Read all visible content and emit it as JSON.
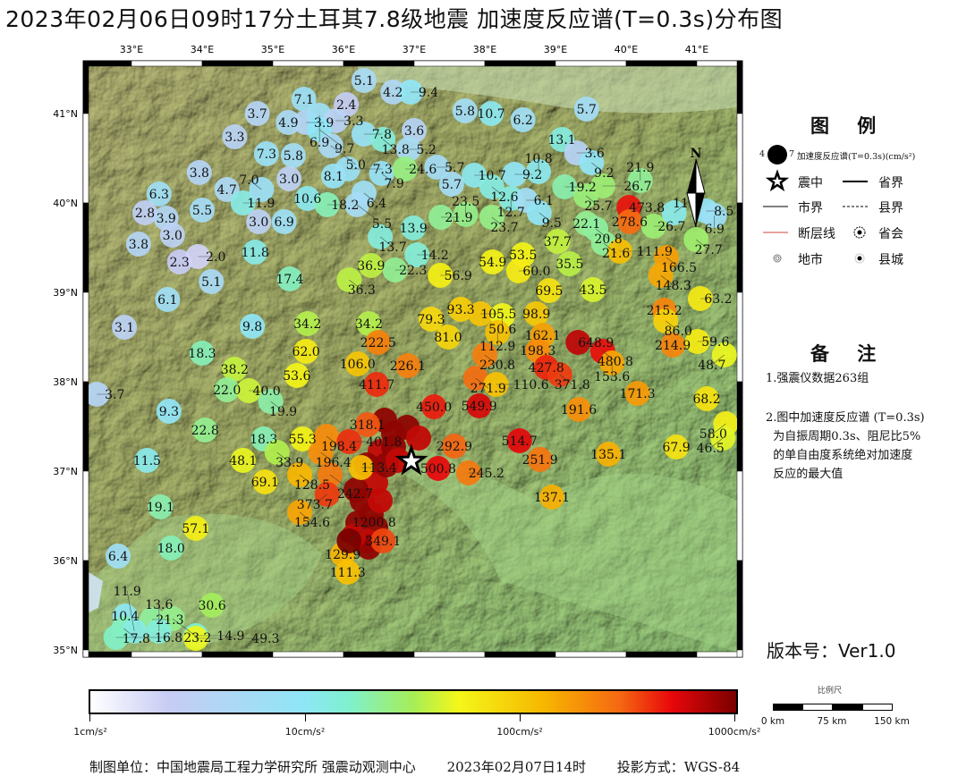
{
  "title": "2023年02月06日09时17分土耳其7.8级地震   加速度反应谱(T=0.3s)分布图",
  "map": {
    "lon_ticks": [
      "33°E",
      "34°E",
      "35°E",
      "36°E",
      "37°E",
      "38°E",
      "39°E",
      "40°E",
      "41°E"
    ],
    "lat_ticks": [
      "41°N",
      "40°N",
      "39°N",
      "38°N",
      "37°N",
      "36°N",
      "35°N"
    ],
    "north_label": "N",
    "epicenter": {
      "lon": 36.96,
      "lat": 37.11
    },
    "color_scale": {
      "min": 1,
      "max": 1000,
      "log": true,
      "stops": [
        "#ffffff",
        "#c8ccf4",
        "#8fe6f6",
        "#7ff0cf",
        "#a6ee57",
        "#f4f719",
        "#f7b800",
        "#f56812",
        "#e8070a",
        "#7a0000"
      ]
    },
    "stations": [
      [
        36.29,
        41.37,
        "5.1"
      ],
      [
        35.44,
        41.16,
        "7.1"
      ],
      [
        36.04,
        41.1,
        "2.4"
      ],
      [
        36.7,
        41.24,
        "4.2"
      ],
      [
        36.95,
        41.24,
        "9.4"
      ],
      [
        34.78,
        41.0,
        "3.7"
      ],
      [
        35.22,
        40.9,
        "4.9"
      ],
      [
        35.47,
        40.9,
        "3.9"
      ],
      [
        35.66,
        40.98,
        "6.9"
      ],
      [
        35.89,
        40.92,
        "3.3"
      ],
      [
        35.66,
        40.82,
        "9.7"
      ],
      [
        37.0,
        40.81,
        "3.6"
      ],
      [
        34.46,
        40.74,
        "3.3"
      ],
      [
        36.29,
        40.77,
        "7.8"
      ],
      [
        36.56,
        40.71,
        "13.8"
      ],
      [
        36.92,
        40.6,
        "5.2"
      ],
      [
        35.82,
        40.64,
        "5.0"
      ],
      [
        34.91,
        40.55,
        "7.3"
      ],
      [
        35.29,
        40.53,
        "5.8"
      ],
      [
        33.96,
        40.34,
        "3.8"
      ],
      [
        35.23,
        40.27,
        "3.0"
      ],
      [
        35.86,
        40.3,
        "8.1"
      ],
      [
        36.06,
        40.38,
        "7.3"
      ],
      [
        36.54,
        40.33,
        "7.9"
      ],
      [
        36.87,
        40.38,
        "24.6"
      ],
      [
        37.32,
        40.4,
        "5.7"
      ],
      [
        33.39,
        40.1,
        "6.3"
      ],
      [
        34.35,
        40.15,
        "4.7"
      ],
      [
        34.58,
        40.0,
        "11.9"
      ],
      [
        34.84,
        40.15,
        "7.0"
      ],
      [
        35.49,
        40.05,
        "10.6"
      ],
      [
        35.77,
        39.98,
        "18.2"
      ],
      [
        36.29,
        40.11,
        "6.4"
      ],
      [
        36.19,
        39.98,
        "5.5"
      ],
      [
        33.19,
        39.89,
        "2.8"
      ],
      [
        33.49,
        39.83,
        "3.9"
      ],
      [
        34.0,
        39.92,
        "5.5"
      ],
      [
        34.8,
        39.79,
        "3.0"
      ],
      [
        35.16,
        39.79,
        "6.9"
      ],
      [
        33.58,
        39.64,
        "3.0"
      ],
      [
        33.1,
        39.54,
        "3.8"
      ],
      [
        33.68,
        39.34,
        "2.3"
      ],
      [
        33.94,
        39.4,
        "2.0"
      ],
      [
        34.75,
        39.45,
        "11.8"
      ],
      [
        36.52,
        39.62,
        "13.7"
      ],
      [
        36.99,
        39.72,
        "13.9"
      ],
      [
        37.04,
        39.42,
        "14.2"
      ],
      [
        34.13,
        39.12,
        "5.1"
      ],
      [
        35.24,
        39.15,
        "17.4"
      ],
      [
        36.39,
        39.3,
        "36.9"
      ],
      [
        36.73,
        39.25,
        "22.3"
      ],
      [
        36.08,
        39.14,
        "36.3"
      ],
      [
        33.51,
        38.92,
        "6.1"
      ],
      [
        37.72,
        41.03,
        "5.8"
      ],
      [
        38.09,
        41.0,
        "10.7"
      ],
      [
        38.54,
        40.93,
        "6.2"
      ],
      [
        39.44,
        41.05,
        "5.7"
      ],
      [
        39.09,
        40.71,
        "13.1"
      ],
      [
        39.3,
        40.56,
        "3.6"
      ],
      [
        39.51,
        40.45,
        "9.2"
      ],
      [
        37.53,
        40.21,
        "5.7"
      ],
      [
        37.85,
        40.31,
        "10.7"
      ],
      [
        38.42,
        40.32,
        "9.2"
      ],
      [
        38.76,
        40.35,
        "10.8"
      ],
      [
        38.1,
        40.18,
        "12.6"
      ],
      [
        38.37,
        40.05,
        "12.7"
      ],
      [
        38.58,
        40.03,
        "6.1"
      ],
      [
        38.77,
        39.89,
        "9.5"
      ],
      [
        39.13,
        40.18,
        "19.2"
      ],
      [
        39.43,
        40.08,
        "25.7"
      ],
      [
        39.67,
        40.19,
        "26.7"
      ],
      [
        40.2,
        40.25,
        "21.9"
      ],
      [
        40.04,
        39.95,
        "473.8"
      ],
      [
        40.05,
        39.79,
        "278.6"
      ],
      [
        40.39,
        39.74,
        "26.7"
      ],
      [
        40.68,
        39.89,
        "11.4"
      ],
      [
        41.13,
        39.91,
        "8.5"
      ],
      [
        41.25,
        39.86,
        "6.9"
      ],
      [
        40.99,
        39.59,
        "27.7"
      ],
      [
        37.38,
        39.84,
        "21.9"
      ],
      [
        37.73,
        39.87,
        "23.5"
      ],
      [
        38.1,
        39.84,
        "23.7"
      ],
      [
        39.44,
        39.77,
        "22.1"
      ],
      [
        39.57,
        39.71,
        "20.8"
      ],
      [
        39.68,
        39.55,
        "21.6"
      ],
      [
        39.91,
        39.46,
        "111.9"
      ],
      [
        39.03,
        39.57,
        "37.7"
      ],
      [
        39.2,
        39.32,
        "35.5"
      ],
      [
        38.11,
        39.34,
        "54.9"
      ],
      [
        38.54,
        39.42,
        "53.5"
      ],
      [
        38.48,
        39.24,
        "60.0"
      ],
      [
        37.37,
        39.19,
        "56.9"
      ],
      [
        40.57,
        39.39,
        "166.5"
      ],
      [
        40.49,
        39.19,
        "148.3"
      ],
      [
        38.91,
        39.02,
        "69.5"
      ],
      [
        39.53,
        39.03,
        "43.5"
      ],
      [
        41.05,
        38.93,
        "63.2"
      ],
      [
        32.9,
        38.61,
        "3.1"
      ],
      [
        34.71,
        38.62,
        "9.8"
      ],
      [
        35.49,
        38.65,
        "34.2"
      ],
      [
        36.36,
        38.65,
        "34.2"
      ],
      [
        34.0,
        38.32,
        "18.3"
      ],
      [
        35.47,
        38.34,
        "62.0"
      ],
      [
        36.49,
        38.44,
        "222.5"
      ],
      [
        36.2,
        38.2,
        "106.0"
      ],
      [
        36.91,
        38.18,
        "226.1"
      ],
      [
        34.46,
        38.14,
        "38.2"
      ],
      [
        34.35,
        37.91,
        "22.0"
      ],
      [
        34.66,
        37.9,
        "40.0"
      ],
      [
        35.34,
        38.07,
        "53.6"
      ],
      [
        36.47,
        37.97,
        "411.7"
      ],
      [
        34.97,
        37.78,
        "19.9"
      ],
      [
        36.34,
        37.52,
        "318.1"
      ],
      [
        32.51,
        37.86,
        "3.7"
      ],
      [
        33.53,
        37.67,
        "9.3"
      ],
      [
        34.04,
        37.46,
        "22.8"
      ],
      [
        34.87,
        37.36,
        "18.3"
      ],
      [
        35.42,
        37.36,
        "55.3"
      ],
      [
        35.76,
        37.39,
        "198.4"
      ],
      [
        36.08,
        37.33,
        "401.8"
      ],
      [
        35.06,
        37.21,
        "33.9"
      ],
      [
        35.68,
        37.21,
        "196.4"
      ],
      [
        34.58,
        37.12,
        "48.1"
      ],
      [
        33.22,
        37.12,
        "11.5"
      ],
      [
        36.25,
        37.04,
        "113.4"
      ],
      [
        34.89,
        36.88,
        "69.1"
      ],
      [
        35.38,
        36.96,
        "128.5"
      ],
      [
        35.81,
        36.96,
        "242.7"
      ],
      [
        35.77,
        36.74,
        "373.7"
      ],
      [
        33.41,
        36.6,
        "19.1"
      ],
      [
        37.24,
        38.7,
        "79.3"
      ],
      [
        37.66,
        38.81,
        "93.3"
      ],
      [
        37.94,
        38.76,
        "105.5"
      ],
      [
        38.25,
        38.74,
        "50.6"
      ],
      [
        38.73,
        38.76,
        "98.9"
      ],
      [
        37.48,
        38.5,
        "81.0"
      ],
      [
        38.18,
        38.55,
        "112.9"
      ],
      [
        38.82,
        38.52,
        "162.1"
      ],
      [
        38.0,
        38.3,
        "230.8"
      ],
      [
        38.75,
        38.35,
        "198.3"
      ],
      [
        39.32,
        38.44,
        "648.9"
      ],
      [
        39.67,
        38.34,
        "480.8"
      ],
      [
        39.8,
        38.21,
        "153.6"
      ],
      [
        38.87,
        38.16,
        "427.8"
      ],
      [
        39.06,
        38.08,
        "371.8"
      ],
      [
        40.54,
        38.8,
        "215.2"
      ],
      [
        40.56,
        38.68,
        "86.0"
      ],
      [
        40.66,
        38.41,
        "214.9"
      ],
      [
        41.01,
        38.45,
        "59.6"
      ],
      [
        41.39,
        38.3,
        "48.7"
      ],
      [
        37.87,
        38.04,
        "271.9"
      ],
      [
        38.16,
        37.97,
        "110.6"
      ],
      [
        40.16,
        37.87,
        "171.3"
      ],
      [
        41.14,
        37.81,
        "68.2"
      ],
      [
        37.92,
        37.73,
        "549.9"
      ],
      [
        37.28,
        37.72,
        "450.0"
      ],
      [
        39.33,
        37.69,
        "191.6"
      ],
      [
        41.41,
        37.53,
        "58.0"
      ],
      [
        41.37,
        37.37,
        "46.5"
      ],
      [
        37.57,
        37.28,
        "292.9"
      ],
      [
        38.49,
        37.34,
        "514.7"
      ],
      [
        37.34,
        37.03,
        "500.8"
      ],
      [
        37.77,
        36.98,
        "245.2"
      ],
      [
        38.78,
        37.13,
        "251.9"
      ],
      [
        39.75,
        37.19,
        "135.1"
      ],
      [
        40.71,
        37.27,
        "67.9"
      ],
      [
        38.95,
        36.71,
        "137.1"
      ],
      [
        33.91,
        36.36,
        "57.1"
      ],
      [
        35.38,
        36.54,
        "154.6"
      ],
      [
        33.56,
        36.14,
        "18.0"
      ],
      [
        32.81,
        36.05,
        "6.4"
      ],
      [
        35.99,
        36.07,
        "129.9"
      ],
      [
        36.56,
        36.22,
        "349.1"
      ],
      [
        36.06,
        35.87,
        "111.3"
      ],
      [
        36.08,
        36.22,
        "1200.8"
      ],
      [
        34.14,
        35.5,
        "30.6"
      ],
      [
        32.91,
        35.38,
        "10.4"
      ],
      [
        33.29,
        35.34,
        "21.3"
      ],
      [
        33.58,
        35.35,
        "23.2"
      ],
      [
        32.89,
        35.24,
        "17.8"
      ],
      [
        33.04,
        35.21,
        "11.9"
      ],
      [
        33.39,
        35.21,
        "13.6"
      ],
      [
        32.78,
        35.14,
        "16.8"
      ],
      [
        33.91,
        35.16,
        "14.9"
      ],
      [
        33.91,
        35.13,
        "49.3"
      ]
    ]
  },
  "legend": {
    "title": "图 例",
    "psa_sample_left": "4",
    "psa_sample_right": "7",
    "psa_label": "加速度反应谱(T=0.3s)(cm/s²)",
    "epicenter": "震中",
    "province_border": "省界",
    "city_border": "市界",
    "county_border": "县界",
    "fault": "断层线",
    "provincial_capital": "省会",
    "city": "地市",
    "county": "县城"
  },
  "notes": {
    "title": "备 注",
    "items": [
      "1.强震仪数据263组",
      "2.图中加速度反应谱 (T=0.3s)",
      "  为自振周期0.3s、阻尼比5%",
      "  的单自由度系统绝对加速度",
      "  反应的最大值"
    ]
  },
  "version": "版本号：Ver1.0",
  "colorbar": {
    "labels": [
      "1cm/s²",
      "10cm/s²",
      "100cm/s²",
      "1000cm/s²"
    ]
  },
  "scalebar": {
    "title": "比例尺",
    "labels": [
      "0 km",
      "75 km",
      "150 km"
    ]
  },
  "footer": {
    "org": "制图单位：中国地震局工程力学研究所 强震动观测中心",
    "date": "2023年02月07日14时",
    "projection": "投影方式：WGS-84"
  }
}
